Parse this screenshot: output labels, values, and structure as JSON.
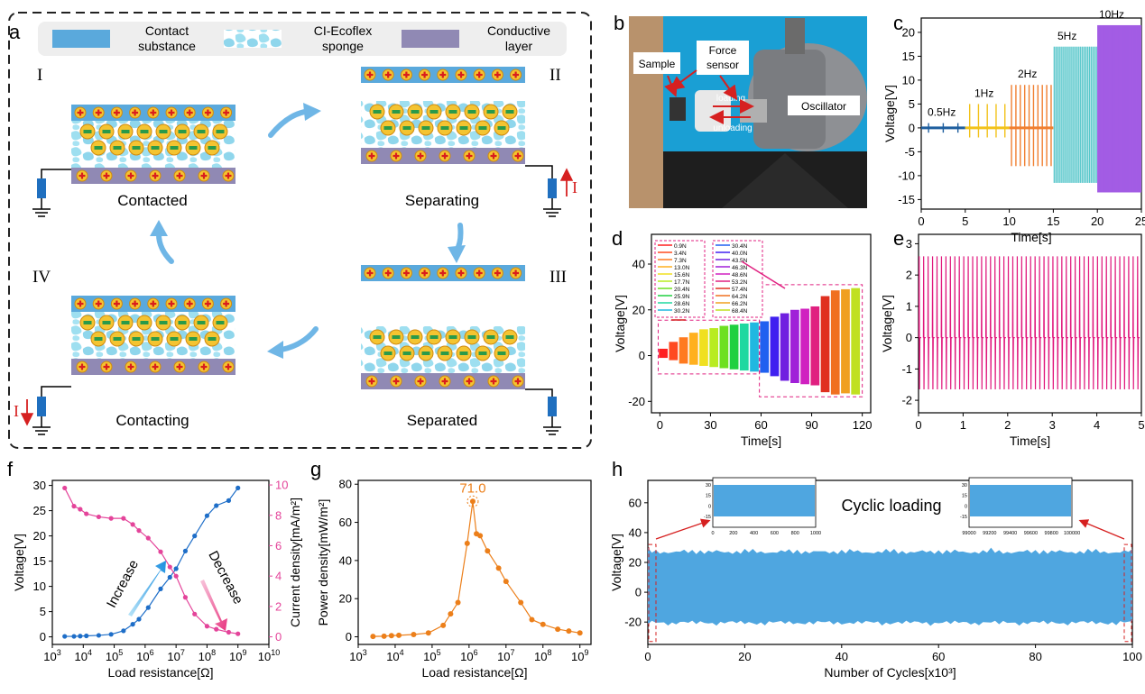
{
  "panel_letters": {
    "a": "a",
    "b": "b",
    "c": "c",
    "d": "d",
    "e": "e",
    "f": "f",
    "g": "g",
    "h": "h"
  },
  "schematic": {
    "legend": [
      "Contact substance",
      "CI-Ecoflex sponge",
      "Conductive layer"
    ],
    "legend_lines": [
      [
        "Contact",
        "substance"
      ],
      [
        "CI-Ecoflex",
        "sponge"
      ],
      [
        "Conductive",
        "layer"
      ]
    ],
    "stages": [
      "I",
      "II",
      "III",
      "IV"
    ],
    "states": [
      "Contacted",
      "Separating",
      "Separated",
      "Contacting"
    ],
    "current_label": "I",
    "colors": {
      "contact": "#5aa9dc",
      "sponge": "#9edff0",
      "conductive": "#9089b4",
      "arrow": "#5aa9dc"
    }
  },
  "photo": {
    "labels": [
      "Sample",
      "Force sensor",
      "loading",
      "unloading",
      "Oscillator"
    ]
  },
  "chart_data": [
    {
      "id": "c",
      "type": "line",
      "xlabel": "Time[s]",
      "ylabel": "Voltage[V]",
      "xlim": [
        0,
        25
      ],
      "ylim": [
        -17,
        23
      ],
      "xticks": [
        0,
        5,
        10,
        15,
        20,
        25
      ],
      "yticks": [
        -15,
        -10,
        -5,
        0,
        5,
        10,
        15,
        20
      ],
      "series": [
        {
          "name": "0.5Hz",
          "t0": 0,
          "t1": 5,
          "freq": 0.5,
          "amp_pos": 1,
          "amp_neg": -1,
          "color": "#1f5f9f"
        },
        {
          "name": "1Hz",
          "t0": 5,
          "t1": 10,
          "freq": 1,
          "amp_pos": 5,
          "amp_neg": -2,
          "color": "#f2c21a"
        },
        {
          "name": "2Hz",
          "t0": 10,
          "t1": 15,
          "freq": 2,
          "amp_pos": 9,
          "amp_neg": -8,
          "color": "#f07f30"
        },
        {
          "name": "5Hz",
          "t0": 15,
          "t1": 20,
          "freq": 5,
          "amp_pos": 17,
          "amp_neg": -11.5,
          "color": "#4fc4c8"
        },
        {
          "name": "10Hz",
          "t0": 20,
          "t1": 25,
          "freq": 10,
          "amp_pos": 21.5,
          "amp_neg": -13.5,
          "color": "#a35ce4"
        }
      ]
    },
    {
      "id": "d",
      "type": "bar",
      "xlabel": "Time[s]",
      "ylabel": "Voltage[V]",
      "xlim": [
        -5,
        125
      ],
      "ylim": [
        -25,
        53
      ],
      "xticks": [
        0,
        30,
        60,
        90,
        120
      ],
      "yticks": [
        -20,
        0,
        20,
        40
      ],
      "legend_left": [
        "0.9N",
        "3.4N",
        "7.3N",
        "13.0N",
        "15.6N",
        "17.7N",
        "20.4N",
        "25.9N",
        "28.6N",
        "30.2N"
      ],
      "legend_right": [
        "30.4N",
        "40.0N",
        "43.5N",
        "46.3N",
        "48.6N",
        "53.2N",
        "57.4N",
        "64.2N",
        "66.2N",
        "68.4N"
      ],
      "x": [
        2,
        8,
        14,
        20,
        26,
        32,
        38,
        44,
        50,
        56,
        62,
        68,
        74,
        80,
        86,
        92,
        98,
        104,
        110,
        116
      ],
      "pos": [
        3,
        6,
        8,
        10,
        11.5,
        12,
        13,
        13.5,
        14,
        14.5,
        15,
        17,
        18.5,
        20,
        20.5,
        21.5,
        26,
        28.5,
        29,
        29.5
      ],
      "neg": [
        -1,
        -2,
        -3.5,
        -4,
        -4.5,
        -5,
        -5.5,
        -6,
        -6.5,
        -7,
        -7.5,
        -9,
        -11,
        -12,
        -12.5,
        -13,
        -16,
        -17,
        -16.5,
        -17
      ]
    },
    {
      "id": "e",
      "type": "line",
      "xlabel": "Time[s]",
      "ylabel": "Voltage[V]",
      "xlim": [
        0,
        5
      ],
      "ylim": [
        -2.4,
        3.3
      ],
      "xticks": [
        0,
        1,
        2,
        3,
        4,
        5
      ],
      "yticks": [
        -2,
        -1,
        0,
        1,
        2,
        3
      ],
      "freq": 10,
      "peak_pos": 2.6,
      "peak_neg": -1.65,
      "color": "#e0177d"
    },
    {
      "id": "f",
      "type": "line",
      "xlabel": "Load resistance[Ω]",
      "ylabel": "Voltage[V]",
      "ylabel2": "Current density[mA/m²]",
      "log_x": true,
      "xlim": [
        3,
        10
      ],
      "ylim": [
        -1.5,
        31
      ],
      "ylim2": [
        -0.5,
        10.3
      ],
      "xticks": [
        3,
        4,
        5,
        6,
        7,
        8,
        9,
        10
      ],
      "yticks": [
        0,
        5,
        10,
        15,
        20,
        25,
        30
      ],
      "yticks2": [
        0,
        2,
        4,
        6,
        8,
        10
      ],
      "annotations": [
        "Increase",
        "Decrease"
      ],
      "series": [
        {
          "name": "Voltage",
          "color": "#1e6ec8",
          "axis": "left",
          "x": [
            3.4,
            3.7,
            3.9,
            4.1,
            4.5,
            4.9,
            5.3,
            5.6,
            5.8,
            6.1,
            6.5,
            6.8,
            7.0,
            7.3,
            7.6,
            8.0,
            8.3,
            8.7,
            9.0
          ],
          "y": [
            0.1,
            0.1,
            0.15,
            0.2,
            0.3,
            0.5,
            1.2,
            2.5,
            3.5,
            5.8,
            9.5,
            11.8,
            13.5,
            17,
            20,
            24,
            26,
            27,
            29.5
          ]
        },
        {
          "name": "Current density",
          "color": "#e4449a",
          "axis": "right",
          "x": [
            3.4,
            3.7,
            3.9,
            4.1,
            4.5,
            4.9,
            5.3,
            5.6,
            5.8,
            6.1,
            6.5,
            6.8,
            7.0,
            7.3,
            7.6,
            8.0,
            8.3,
            8.7,
            9.0
          ],
          "y": [
            9.8,
            8.6,
            8.4,
            8.1,
            7.9,
            7.8,
            7.8,
            7.4,
            7.0,
            6.5,
            5.6,
            4.6,
            4.0,
            2.6,
            1.5,
            0.7,
            0.5,
            0.3,
            0.2
          ]
        }
      ]
    },
    {
      "id": "g",
      "type": "line",
      "xlabel": "Load resistance[Ω]",
      "ylabel": "Power density[mW/m²]",
      "log_x": true,
      "xlim": [
        3,
        9.3
      ],
      "ylim": [
        -4,
        82
      ],
      "xticks": [
        3,
        4,
        5,
        6,
        7,
        8,
        9
      ],
      "yticks": [
        0,
        20,
        40,
        60,
        80
      ],
      "peak_label": "71.0",
      "color": "#ec7f1a",
      "x": [
        3.4,
        3.7,
        3.9,
        4.1,
        4.5,
        4.9,
        5.3,
        5.5,
        5.7,
        5.95,
        6.1,
        6.2,
        6.3,
        6.5,
        6.8,
        7.0,
        7.4,
        7.7,
        8.0,
        8.4,
        8.7,
        9.0
      ],
      "y": [
        0.2,
        0.3,
        0.6,
        0.8,
        1.2,
        2,
        6,
        12,
        18,
        49,
        71,
        54,
        53,
        45,
        36,
        29,
        18,
        9,
        6.5,
        4,
        3,
        2
      ]
    },
    {
      "id": "h",
      "type": "area",
      "xlabel": "Number of Cycles[x10³]",
      "ylabel": "Voltage[V]",
      "xlim": [
        0,
        100
      ],
      "ylim": [
        -35,
        75
      ],
      "xticks": [
        0,
        20,
        40,
        60,
        80,
        100
      ],
      "yticks": [
        -20,
        0,
        20,
        40,
        60
      ],
      "title": "Cyclic loading",
      "color": "#4fa6e0",
      "band_top": 30,
      "band_bottom": -23,
      "inset1": {
        "xticks": [
          0,
          200,
          400,
          600,
          800,
          1000
        ],
        "yticks": [
          30,
          15,
          0,
          -15
        ]
      },
      "inset2": {
        "xticks": [
          99000,
          99200,
          99400,
          99600,
          99800,
          100000
        ],
        "yticks": [
          30,
          15,
          0,
          -15
        ]
      }
    }
  ]
}
